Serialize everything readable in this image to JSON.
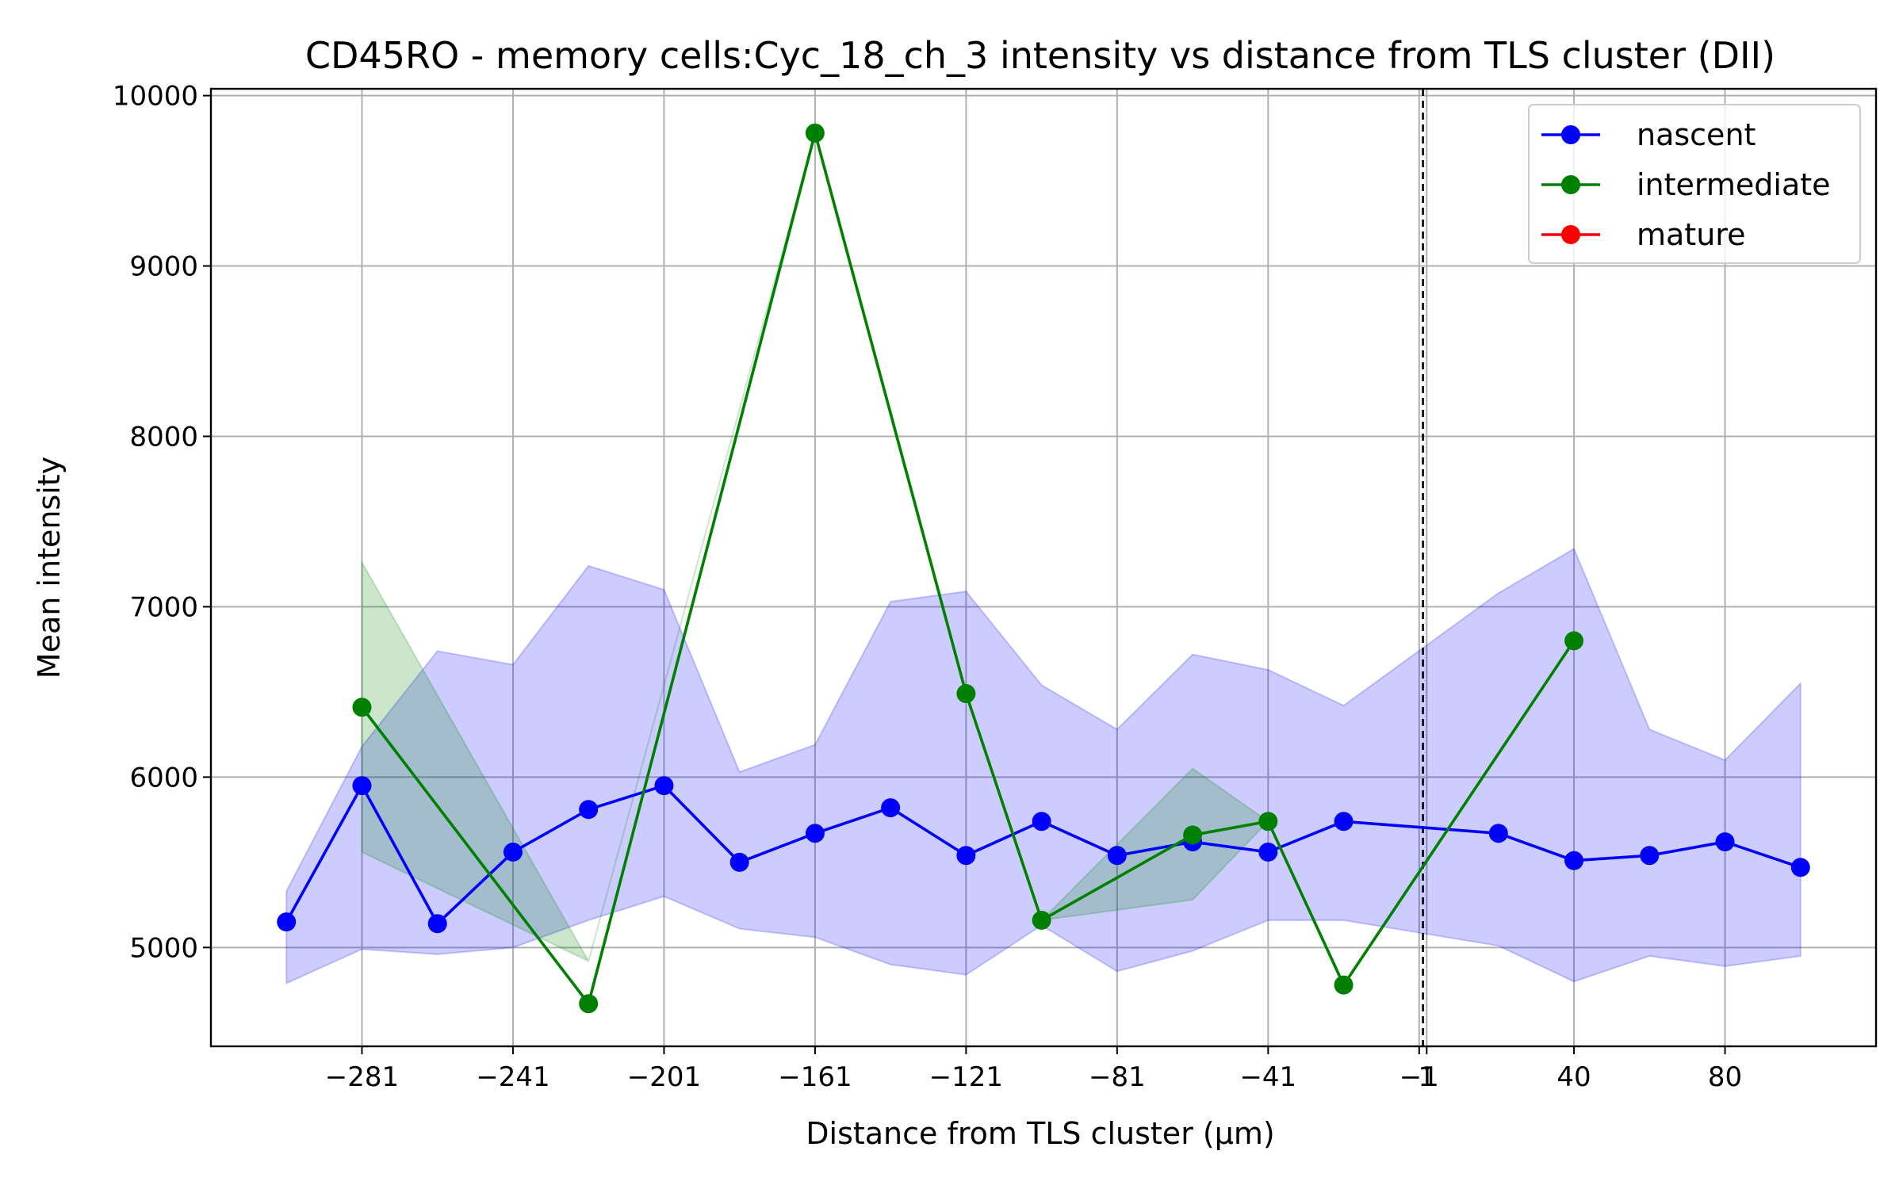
{
  "chart_data": {
    "type": "line",
    "title": "CD45RO - memory cells:Cyc_18_ch_3 intensity vs distance from TLS cluster (DII)",
    "xlabel": "Distance from TLS cluster (μm)",
    "ylabel": "Mean intensity",
    "xlim": [
      -321,
      120
    ],
    "ylim": [
      4420,
      10040
    ],
    "x_ticks": [
      -281,
      -241,
      -201,
      -161,
      -121,
      -81,
      -41,
      -1,
      1,
      40,
      80
    ],
    "x_tick_labels": [
      "−281",
      "−241",
      "−201",
      "−161",
      "−121",
      "−81",
      "−41",
      "−1",
      "1",
      "40",
      "80"
    ],
    "y_ticks": [
      5000,
      6000,
      7000,
      8000,
      9000,
      10000
    ],
    "y_tick_labels": [
      "5000",
      "6000",
      "7000",
      "8000",
      "9000",
      "10000"
    ],
    "grid": true,
    "legend_position": "top-right",
    "reference_line_x": 0,
    "series": [
      {
        "name": "nascent",
        "color": "#0000ff",
        "band_color": "#0000ff",
        "x": [
          -301,
          -281,
          -261,
          -241,
          -221,
          -201,
          -181,
          -161,
          -141,
          -121,
          -101,
          -81,
          -61,
          -41,
          -21,
          20,
          40,
          60,
          80,
          100
        ],
        "y": [
          5150,
          5950,
          5140,
          5560,
          5810,
          5950,
          5500,
          5670,
          5820,
          5540,
          5740,
          5540,
          5620,
          5560,
          5740,
          5670,
          5510,
          5540,
          5620,
          5470
        ],
        "lower": [
          4790,
          4990,
          4960,
          5000,
          5160,
          5300,
          5110,
          5060,
          4900,
          4840,
          5130,
          4860,
          4980,
          5160,
          5160,
          5010,
          4800,
          4950,
          4890,
          4950
        ],
        "upper": [
          5330,
          6180,
          6740,
          6660,
          7240,
          7100,
          6030,
          6190,
          7030,
          7090,
          6540,
          6280,
          6720,
          6630,
          6420,
          7080,
          7340,
          6280,
          6100,
          6550
        ]
      },
      {
        "name": "intermediate",
        "color": "#008000",
        "band_color": "#008000",
        "x": [
          -281,
          -221,
          -161,
          -121,
          -101,
          -61,
          -41,
          -21,
          40
        ],
        "y": [
          6410,
          4670,
          9780,
          6490,
          5160,
          5660,
          5740,
          4780,
          6800
        ],
        "lower": [
          5560,
          4920,
          9780,
          6490,
          5160,
          5280,
          5740,
          4780,
          6800
        ],
        "upper": [
          7260,
          4920,
          9780,
          6490,
          5160,
          6050,
          5740,
          4780,
          6800
        ]
      },
      {
        "name": "mature",
        "color": "#ff0000",
        "x": [],
        "y": []
      }
    ]
  }
}
